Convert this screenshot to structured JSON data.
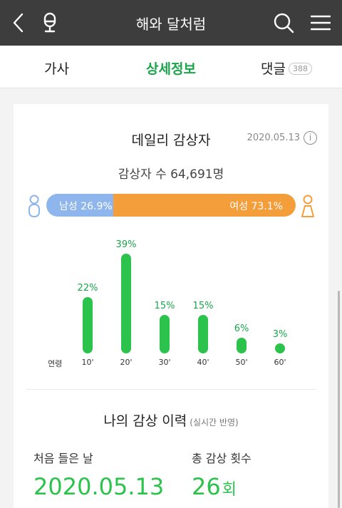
{
  "header": {
    "title": "해와 달처럼",
    "back_icon": "chevron-left-icon",
    "mic_icon": "microphone-icon",
    "search_icon": "search-icon",
    "menu_icon": "hamburger-menu-icon"
  },
  "tabs": [
    {
      "label": "가사",
      "active": false
    },
    {
      "label": "상세정보",
      "active": true
    },
    {
      "label": "댓글",
      "active": false,
      "badge": "388"
    }
  ],
  "daily": {
    "title": "데일리 감상자",
    "date": "2020.05.13",
    "info_icon": "i",
    "viewers": "감상자 수 64,691명",
    "male_label": "남성 26.9%",
    "female_label": "여성 73.1%",
    "male_ratio": 0.269,
    "female_ratio": 0.731
  },
  "age": {
    "axis_label": "연령",
    "groups": [
      {
        "label": "10'",
        "pct": "22%",
        "value": 22
      },
      {
        "label": "20'",
        "pct": "39%",
        "value": 39
      },
      {
        "label": "30'",
        "pct": "15%",
        "value": 15
      },
      {
        "label": "40'",
        "pct": "15%",
        "value": 15
      },
      {
        "label": "50'",
        "pct": "6%",
        "value": 6
      },
      {
        "label": "60'",
        "pct": "3%",
        "value": 3
      }
    ]
  },
  "history": {
    "title": "나의 감상 이력",
    "subtitle": "(실시간 반영)",
    "first_label": "처음 들은 날",
    "first_value": "2020.05.13",
    "count_label": "총 감상 횟수",
    "count_value": "26",
    "count_unit": "회"
  },
  "colors": {
    "accent_green": "#2bc34c",
    "male_blue": "#8fb5ed",
    "female_orange": "#f39e3b",
    "header_bg": "#3d3d3d"
  }
}
